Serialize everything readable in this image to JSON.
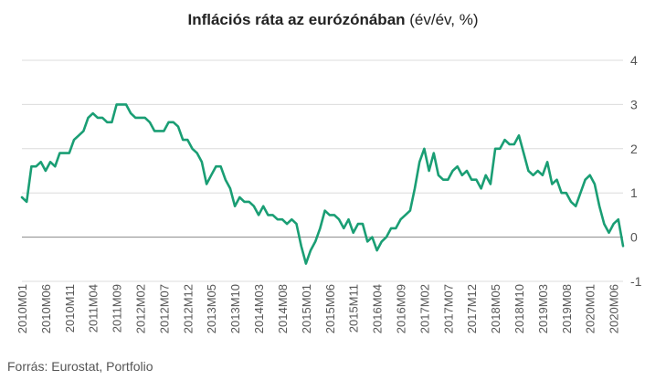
{
  "title": {
    "main": "Inflációs ráta az eurózónában",
    "unit": " (év/év, %)"
  },
  "source": "Forrás: Eurostat, Portfolio",
  "colors": {
    "line": "#1a9e74",
    "grid": "#dcdcdc",
    "zero": "#888888",
    "text": "#555555"
  },
  "chart_data": {
    "type": "line",
    "title": "Inflációs ráta az eurózónában (év/év, %)",
    "xlabel": "",
    "ylabel": "",
    "ylim": [
      -1,
      4
    ],
    "yticks": [
      "4",
      "3",
      "2",
      "1",
      "0",
      "-1"
    ],
    "grid": true,
    "legend": "none",
    "xtick_labels": [
      "2010M01",
      "2010M06",
      "2010M11",
      "2011M04",
      "2011M09",
      "2012M02",
      "2012M07",
      "2012M12",
      "2013M05",
      "2013M10",
      "2014M03",
      "2014M08",
      "2015M01",
      "2015M06",
      "2015M11",
      "2016M04",
      "2016M09",
      "2017M02",
      "2017M07",
      "2017M12",
      "2018M05",
      "2018M10",
      "2019M03",
      "2019M08",
      "2020M01",
      "2020M06"
    ],
    "x": [
      "2010M01",
      "2010M02",
      "2010M03",
      "2010M04",
      "2010M05",
      "2010M06",
      "2010M07",
      "2010M08",
      "2010M09",
      "2010M10",
      "2010M11",
      "2010M12",
      "2011M01",
      "2011M02",
      "2011M03",
      "2011M04",
      "2011M05",
      "2011M06",
      "2011M07",
      "2011M08",
      "2011M09",
      "2011M10",
      "2011M11",
      "2011M12",
      "2012M01",
      "2012M02",
      "2012M03",
      "2012M04",
      "2012M05",
      "2012M06",
      "2012M07",
      "2012M08",
      "2012M09",
      "2012M10",
      "2012M11",
      "2012M12",
      "2013M01",
      "2013M02",
      "2013M03",
      "2013M04",
      "2013M05",
      "2013M06",
      "2013M07",
      "2013M08",
      "2013M09",
      "2013M10",
      "2013M11",
      "2013M12",
      "2014M01",
      "2014M02",
      "2014M03",
      "2014M04",
      "2014M05",
      "2014M06",
      "2014M07",
      "2014M08",
      "2014M09",
      "2014M10",
      "2014M11",
      "2014M12",
      "2015M01",
      "2015M02",
      "2015M03",
      "2015M04",
      "2015M05",
      "2015M06",
      "2015M07",
      "2015M08",
      "2015M09",
      "2015M10",
      "2015M11",
      "2015M12",
      "2016M01",
      "2016M02",
      "2016M03",
      "2016M04",
      "2016M05",
      "2016M06",
      "2016M07",
      "2016M08",
      "2016M09",
      "2016M10",
      "2016M11",
      "2016M12",
      "2017M01",
      "2017M02",
      "2017M03",
      "2017M04",
      "2017M05",
      "2017M06",
      "2017M07",
      "2017M08",
      "2017M09",
      "2017M10",
      "2017M11",
      "2017M12",
      "2018M01",
      "2018M02",
      "2018M03",
      "2018M04",
      "2018M05",
      "2018M06",
      "2018M07",
      "2018M08",
      "2018M09",
      "2018M10",
      "2018M11",
      "2018M12",
      "2019M01",
      "2019M02",
      "2019M03",
      "2019M04",
      "2019M05",
      "2019M06",
      "2019M07",
      "2019M08",
      "2019M09",
      "2019M10",
      "2019M11",
      "2019M12",
      "2020M01",
      "2020M02",
      "2020M03",
      "2020M04",
      "2020M05",
      "2020M06",
      "2020M07",
      "2020M08"
    ],
    "series": [
      {
        "values": [
          0.9,
          0.8,
          1.6,
          1.6,
          1.7,
          1.5,
          1.7,
          1.6,
          1.9,
          1.9,
          1.9,
          2.2,
          2.3,
          2.4,
          2.7,
          2.8,
          2.7,
          2.7,
          2.6,
          2.6,
          3.0,
          3.0,
          3.0,
          2.8,
          2.7,
          2.7,
          2.7,
          2.6,
          2.4,
          2.4,
          2.4,
          2.6,
          2.6,
          2.5,
          2.2,
          2.2,
          2.0,
          1.9,
          1.7,
          1.2,
          1.4,
          1.6,
          1.6,
          1.3,
          1.1,
          0.7,
          0.9,
          0.8,
          0.8,
          0.7,
          0.5,
          0.7,
          0.5,
          0.5,
          0.4,
          0.4,
          0.3,
          0.4,
          0.3,
          -0.2,
          -0.6,
          -0.3,
          -0.1,
          0.2,
          0.6,
          0.5,
          0.5,
          0.4,
          0.2,
          0.4,
          0.1,
          0.3,
          0.3,
          -0.1,
          0.0,
          -0.3,
          -0.1,
          0.0,
          0.2,
          0.2,
          0.4,
          0.5,
          0.6,
          1.1,
          1.7,
          2.0,
          1.5,
          1.9,
          1.4,
          1.3,
          1.3,
          1.5,
          1.6,
          1.4,
          1.5,
          1.3,
          1.3,
          1.1,
          1.4,
          1.2,
          2.0,
          2.0,
          2.2,
          2.1,
          2.1,
          2.3,
          1.9,
          1.5,
          1.4,
          1.5,
          1.4,
          1.7,
          1.2,
          1.3,
          1.0,
          1.0,
          0.8,
          0.7,
          1.0,
          1.3,
          1.4,
          1.2,
          0.7,
          0.3,
          0.1,
          0.3,
          0.4,
          -0.2
        ]
      }
    ]
  }
}
